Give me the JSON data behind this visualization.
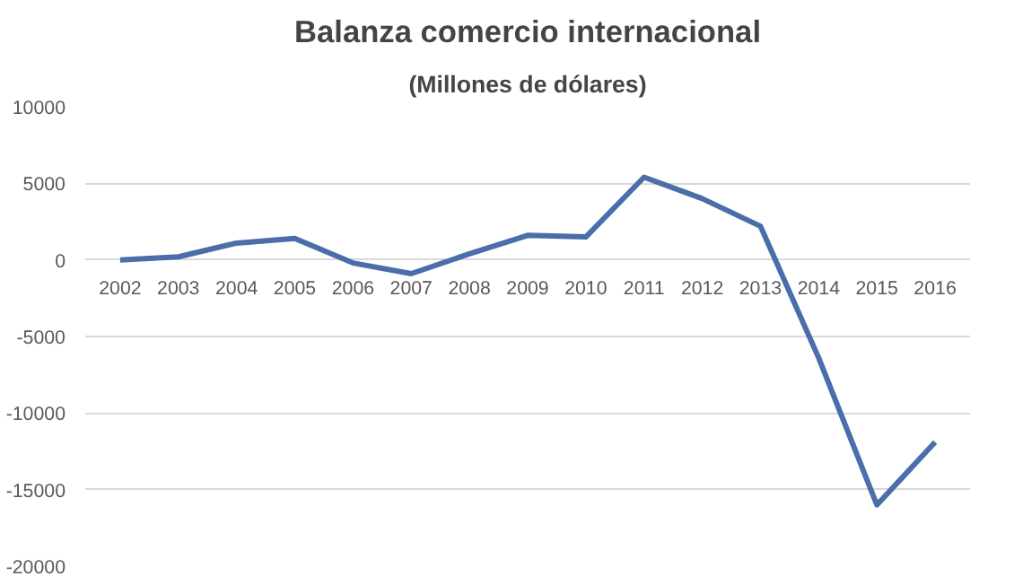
{
  "chart_data": {
    "type": "line",
    "title": "Balanza comercio internacional",
    "subtitle": "(Millones de dólares)",
    "categories": [
      "2002",
      "2003",
      "2004",
      "2005",
      "2006",
      "2007",
      "2008",
      "2009",
      "2010",
      "2011",
      "2012",
      "2013",
      "2014",
      "2015",
      "2016"
    ],
    "series": [
      {
        "color": "#4a6eaa",
        "values": [
          0,
          200,
          1100,
          1400,
          -200,
          -900,
          400,
          1600,
          1500,
          5400,
          4000,
          2200,
          -6400,
          -16000,
          -11900
        ]
      }
    ],
    "ylim": [
      -20000,
      10000
    ],
    "yticks": [
      -20000,
      -15000,
      -10000,
      -5000,
      0,
      5000,
      10000
    ],
    "grid": "y",
    "marker": "none",
    "line_style": "solid"
  }
}
